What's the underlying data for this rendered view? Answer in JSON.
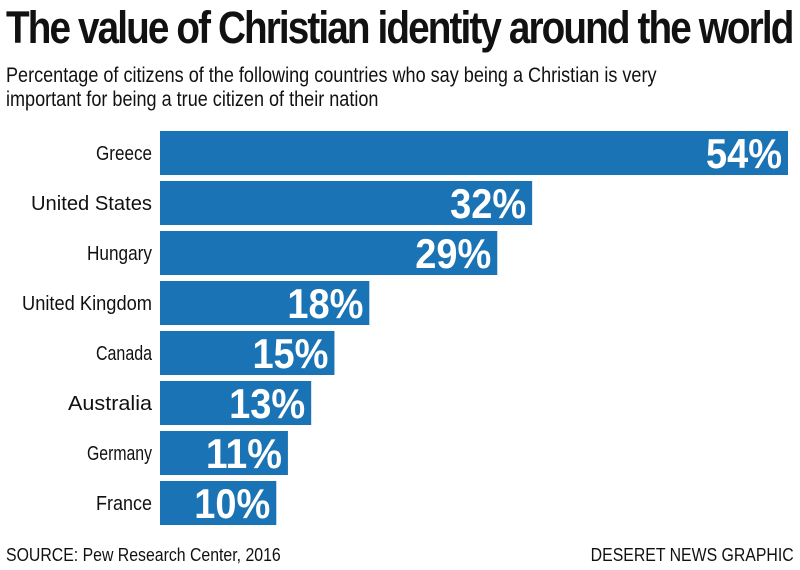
{
  "header": {
    "title": "The value of Christian identity around the world",
    "subtitle_line1": "Percentage of citizens of the following countries who say being a Christian is very",
    "subtitle_line2": "important for being a true citizen of their nation"
  },
  "footer": {
    "source": "SOURCE: Pew Research Center, 2016",
    "credit": "DESERET NEWS GRAPHIC"
  },
  "colors": {
    "bar": "#1a73b4",
    "bar_label": "#ffffff",
    "text": "#111111"
  },
  "chart_data": {
    "type": "bar",
    "orientation": "horizontal",
    "title": "The value of Christian identity around the world",
    "subtitle": "Percentage of citizens of the following countries who say being a Christian is very important for being a true citizen of their nation",
    "categories": [
      "Greece",
      "United States",
      "Hungary",
      "United Kingdom",
      "Canada",
      "Australia",
      "Germany",
      "France"
    ],
    "values": [
      54,
      32,
      29,
      18,
      15,
      13,
      11,
      10
    ],
    "value_labels": [
      "54%",
      "32%",
      "29%",
      "18%",
      "15%",
      "13%",
      "11%",
      "10%"
    ],
    "unit": "%",
    "xlim": [
      0,
      54
    ],
    "grid": false,
    "legend": "none"
  }
}
